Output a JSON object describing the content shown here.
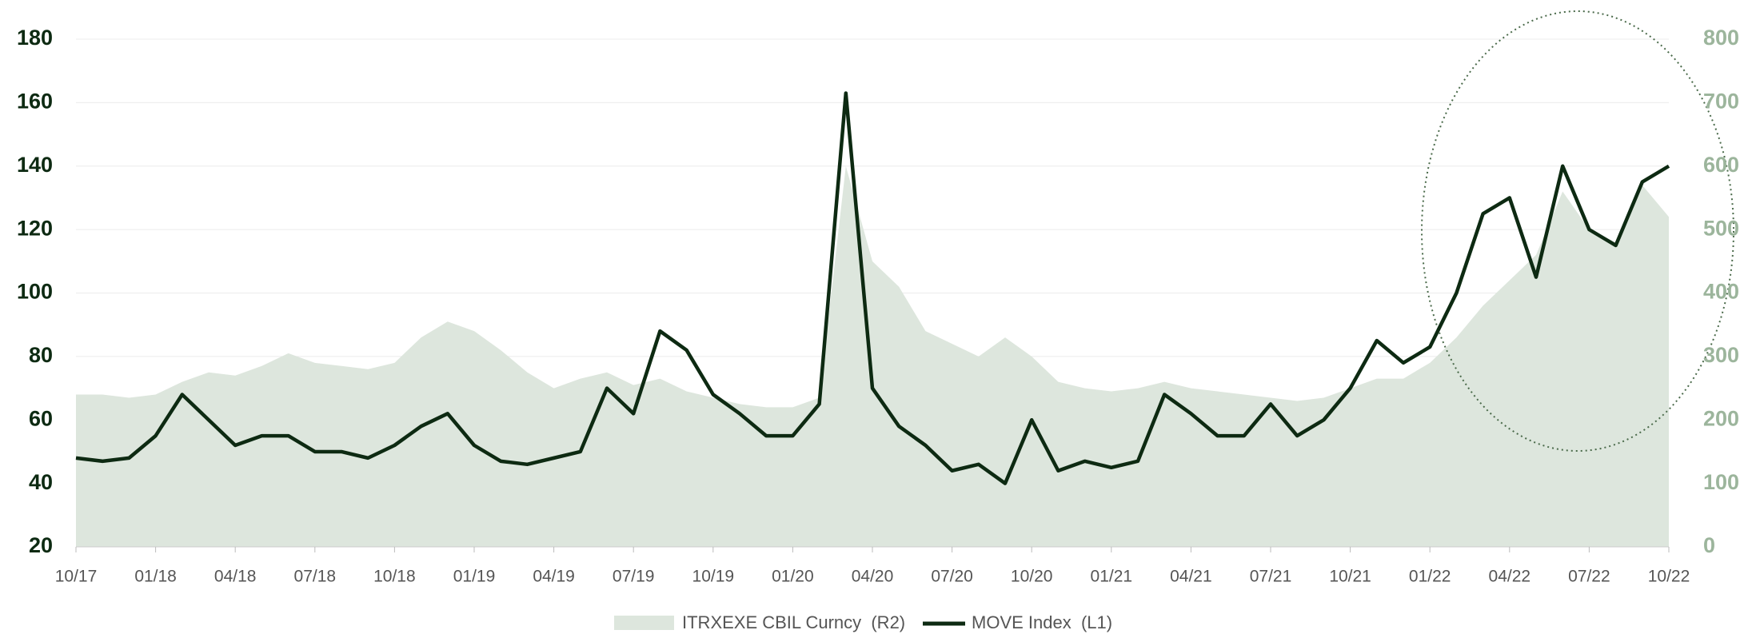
{
  "chart_data": {
    "type": "line",
    "categories": [
      "10/17",
      null,
      null,
      "01/18",
      null,
      null,
      "04/18",
      null,
      null,
      "07/18",
      null,
      null,
      "10/18",
      null,
      null,
      "01/19",
      null,
      null,
      "04/19",
      null,
      null,
      "07/19",
      null,
      null,
      "10/19",
      null,
      null,
      "01/20",
      null,
      null,
      "04/20",
      null,
      null,
      "07/20",
      null,
      null,
      "10/20",
      null,
      null,
      "01/21",
      null,
      null,
      "04/21",
      null,
      null,
      "07/21",
      null,
      null,
      "10/21",
      null,
      null,
      "01/22",
      null,
      null,
      "04/22",
      null,
      null,
      "07/22",
      null,
      null,
      "10/22"
    ],
    "series": [
      {
        "name": "ITRXEXE CBIL Curncy  (R2)",
        "type": "area",
        "axis": "y2",
        "color": "#dde6dd",
        "values": [
          240,
          240,
          235,
          240,
          260,
          275,
          270,
          285,
          305,
          290,
          285,
          280,
          290,
          330,
          355,
          340,
          310,
          275,
          250,
          265,
          275,
          255,
          265,
          245,
          235,
          225,
          220,
          220,
          235,
          600,
          450,
          410,
          340,
          320,
          300,
          330,
          300,
          260,
          250,
          245,
          250,
          260,
          250,
          245,
          240,
          235,
          230,
          235,
          250,
          265,
          265,
          290,
          330,
          380,
          420,
          460,
          560,
          500,
          480,
          570,
          520
        ]
      },
      {
        "name": "MOVE Index  (L1)",
        "type": "line",
        "axis": "y",
        "color": "#0d2a12",
        "values": [
          48,
          47,
          48,
          55,
          68,
          60,
          52,
          55,
          55,
          50,
          50,
          48,
          52,
          58,
          62,
          52,
          47,
          46,
          48,
          50,
          70,
          62,
          88,
          82,
          68,
          62,
          55,
          55,
          65,
          163,
          70,
          58,
          52,
          44,
          46,
          40,
          60,
          44,
          47,
          45,
          47,
          68,
          62,
          55,
          55,
          65,
          55,
          60,
          70,
          85,
          78,
          83,
          100,
          125,
          130,
          105,
          140,
          120,
          115,
          135,
          140
        ]
      }
    ],
    "ylim": [
      20,
      180
    ],
    "yticks": [
      20,
      40,
      60,
      80,
      100,
      120,
      140,
      160,
      180
    ],
    "y2lim": [
      0,
      800
    ],
    "y2ticks": [
      0,
      100,
      200,
      300,
      400,
      500,
      600,
      700,
      800
    ],
    "grid": true,
    "legend": "bottom"
  }
}
